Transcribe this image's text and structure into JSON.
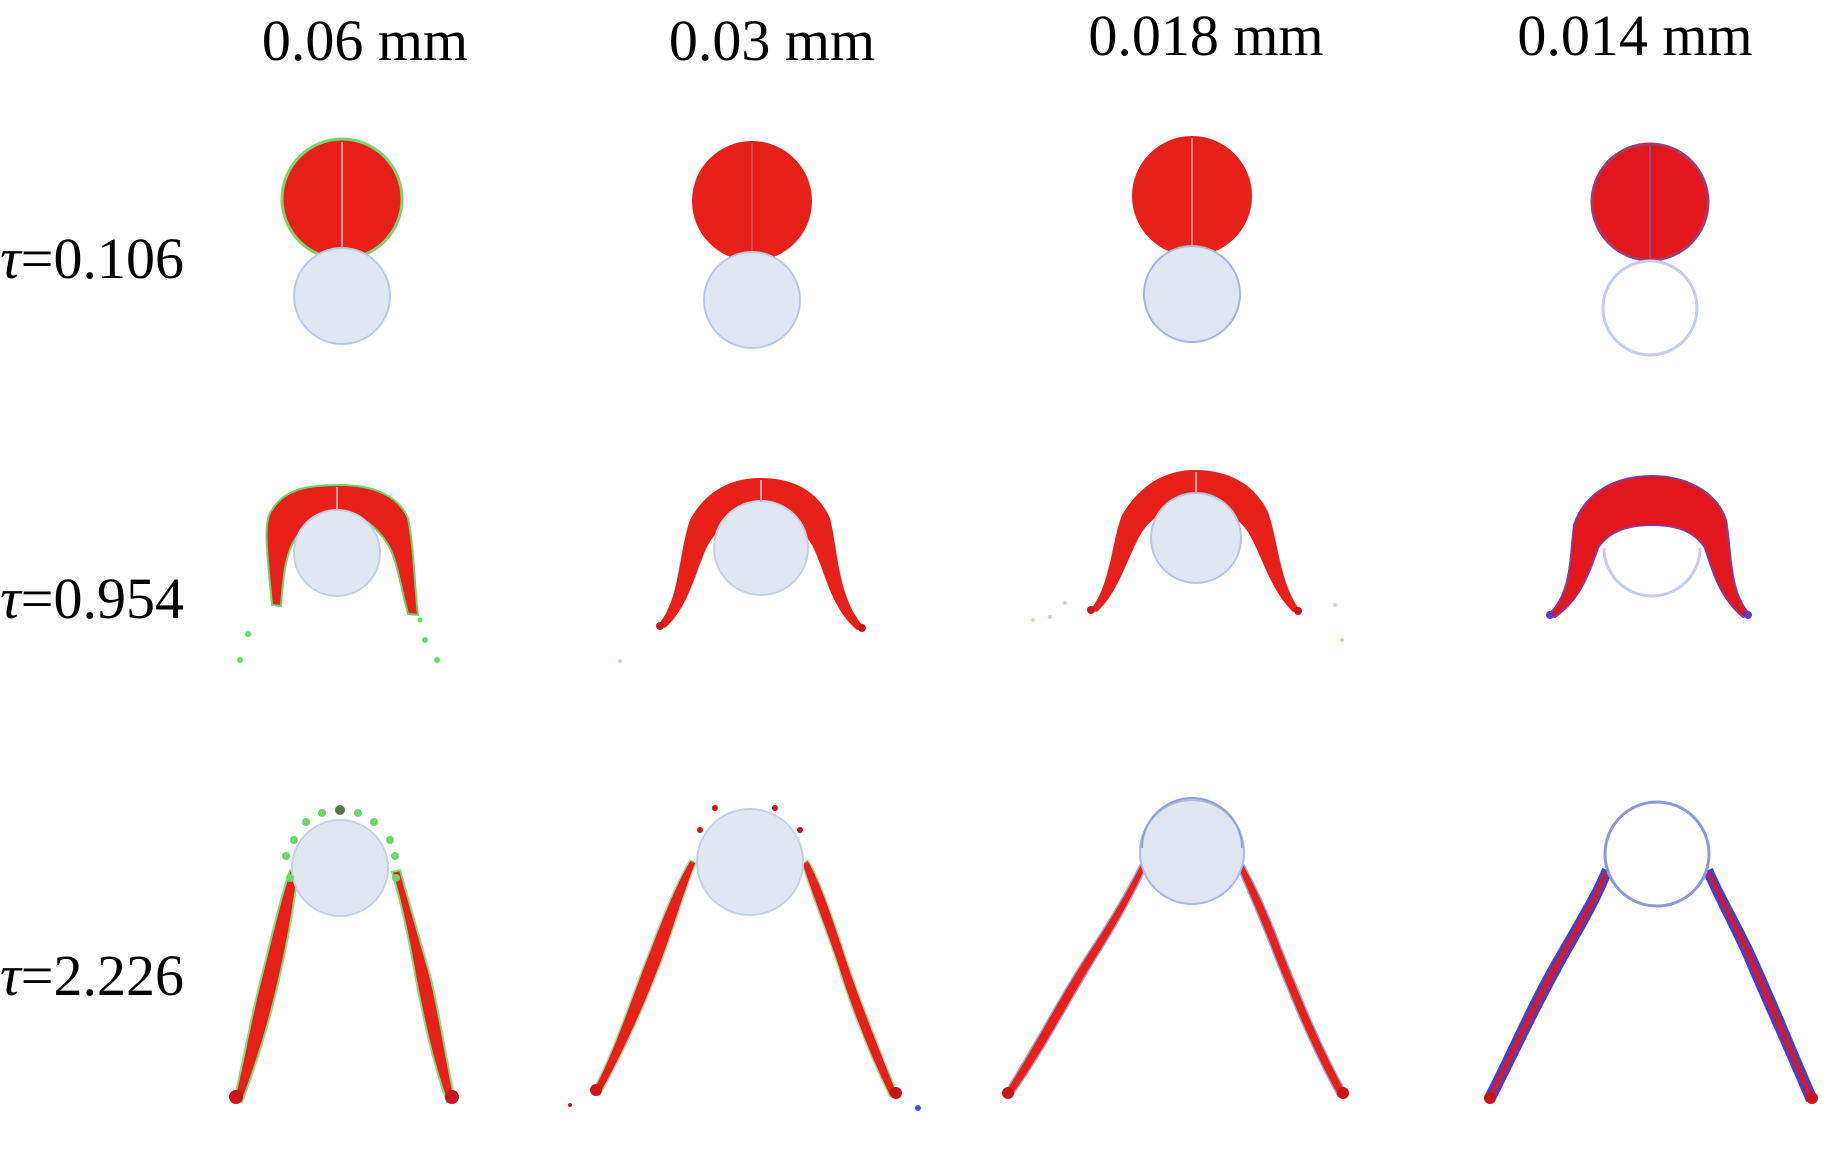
{
  "columns": [
    {
      "label": "0.06 mm"
    },
    {
      "label": "0.03 mm"
    },
    {
      "label": "0.018 mm"
    },
    {
      "label": "0.014 mm"
    }
  ],
  "rows": [
    {
      "symbol": "τ",
      "value": "=0.106"
    },
    {
      "symbol": "τ",
      "value": "=0.954"
    },
    {
      "symbol": "τ",
      "value": "=2.226"
    }
  ],
  "colors": {
    "droplet": "#e8201a",
    "droplet_dark": "#c8141a",
    "particle_fill": "#dfe7f3",
    "particle_edge": "#9fb2d8",
    "green_fragments": "#5de65a",
    "blue_tint": "#3b3ccf"
  }
}
